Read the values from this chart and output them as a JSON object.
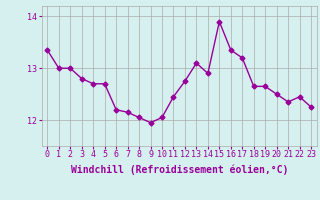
{
  "x": [
    0,
    1,
    2,
    3,
    4,
    5,
    6,
    7,
    8,
    9,
    10,
    11,
    12,
    13,
    14,
    15,
    16,
    17,
    18,
    19,
    20,
    21,
    22,
    23
  ],
  "y": [
    13.35,
    13.0,
    13.0,
    12.8,
    12.7,
    12.7,
    12.2,
    12.15,
    12.05,
    11.95,
    12.05,
    12.45,
    12.75,
    13.1,
    12.9,
    13.9,
    13.35,
    13.2,
    12.65,
    12.65,
    12.5,
    12.35,
    12.45,
    12.25
  ],
  "line_color": "#990099",
  "marker": "D",
  "marker_size": 2.5,
  "bg_color": "#d6f0f0",
  "grid_color": "#aaaaaa",
  "xlabel": "Windchill (Refroidissement éolien,°C)",
  "ylim": [
    11.5,
    14.2
  ],
  "xlim": [
    -0.5,
    23.5
  ],
  "yticks": [
    12,
    13,
    14
  ],
  "xticks": [
    0,
    1,
    2,
    3,
    4,
    5,
    6,
    7,
    8,
    9,
    10,
    11,
    12,
    13,
    14,
    15,
    16,
    17,
    18,
    19,
    20,
    21,
    22,
    23
  ],
  "tick_fontsize": 6,
  "xlabel_fontsize": 7,
  "line_width": 1.0
}
